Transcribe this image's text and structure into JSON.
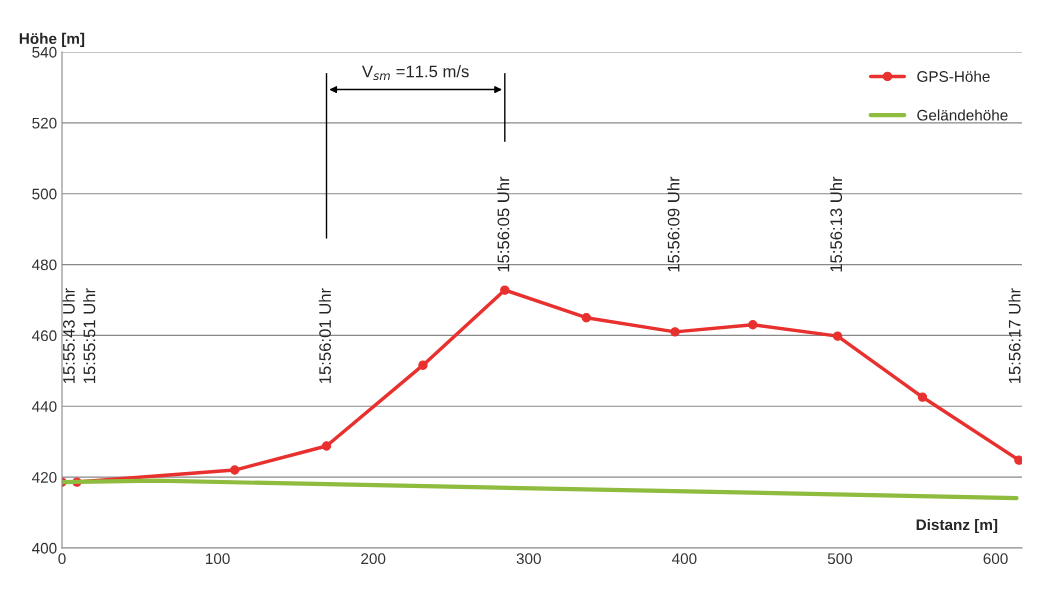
{
  "chart_data": {
    "type": "line",
    "xlabel": "Distanz [m]",
    "ylabel": "Höhe [m]",
    "series": [
      {
        "name": "GPS-Höhe",
        "color": "#e8312f",
        "marker": "circle",
        "x": [
          0,
          9.6,
          111,
          170,
          232,
          284.6,
          337,
          394,
          444,
          498.5,
          553,
          615
        ],
        "values": [
          418.6,
          418.6,
          422,
          428.8,
          451.6,
          472.8,
          465,
          461,
          463,
          459.8,
          442.6,
          424.8
        ]
      },
      {
        "name": "Geländehöhe",
        "color": "#8fbb3f",
        "marker": "none",
        "x": [
          0,
          60,
          613.5
        ],
        "values": [
          418.6,
          419,
          414.1
        ]
      }
    ],
    "annotations": [
      "15:55:43 Uhr",
      "15:55:51 Uhr",
      "15:56:01 Uhr",
      "15:56:05 Uhr",
      "15:56:09 Uhr",
      "15:56:13 Uhr",
      "15:56:17 Uhr",
      "V$_{sm}$ =11.5 m/s"
    ],
    "xlim": [
      0,
      617
    ],
    "xticks": [
      0,
      100,
      200,
      300,
      400,
      500,
      600
    ],
    "ylim": [
      400,
      540
    ],
    "yticks": [
      400,
      420,
      440,
      460,
      480,
      500,
      520,
      540
    ],
    "grid": "y",
    "legend": "top right",
    "line_style": "solid"
  }
}
